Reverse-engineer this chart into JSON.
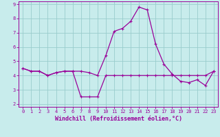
{
  "xlabel": "Windchill (Refroidissement éolien,°C)",
  "background_color": "#c8ecec",
  "grid_color": "#99cccc",
  "line_color": "#990099",
  "xlim": [
    -0.5,
    23.5
  ],
  "ylim": [
    1.8,
    9.2
  ],
  "yticks": [
    2,
    3,
    4,
    5,
    6,
    7,
    8,
    9
  ],
  "xticks": [
    0,
    1,
    2,
    3,
    4,
    5,
    6,
    7,
    8,
    9,
    10,
    11,
    12,
    13,
    14,
    15,
    16,
    17,
    18,
    19,
    20,
    21,
    22,
    23
  ],
  "series1_x": [
    0,
    1,
    2,
    3,
    4,
    5,
    6,
    7,
    8,
    9,
    10,
    11,
    12,
    13,
    14,
    15,
    16,
    17,
    18,
    19,
    20,
    21,
    22,
    23
  ],
  "series1_y": [
    4.5,
    4.3,
    4.3,
    4.0,
    4.2,
    4.3,
    4.3,
    2.5,
    2.5,
    2.5,
    4.0,
    4.0,
    4.0,
    4.0,
    4.0,
    4.0,
    4.0,
    4.0,
    4.0,
    4.0,
    4.0,
    4.0,
    4.0,
    4.3
  ],
  "series2_x": [
    0,
    1,
    2,
    3,
    4,
    5,
    6,
    7,
    8,
    9,
    10,
    11,
    12,
    13,
    14,
    15,
    16,
    17,
    18,
    19,
    20,
    21,
    22,
    23
  ],
  "series2_y": [
    4.5,
    4.3,
    4.3,
    4.0,
    4.2,
    4.3,
    4.3,
    4.3,
    4.2,
    4.0,
    5.4,
    7.1,
    7.3,
    7.8,
    8.8,
    8.6,
    6.2,
    4.8,
    4.1,
    3.6,
    3.5,
    3.7,
    3.3,
    4.3
  ],
  "marker": "+",
  "markersize": 3,
  "linewidth": 0.9,
  "font_color": "#990099",
  "tick_fontsize": 5.0,
  "label_fontsize": 6.0
}
